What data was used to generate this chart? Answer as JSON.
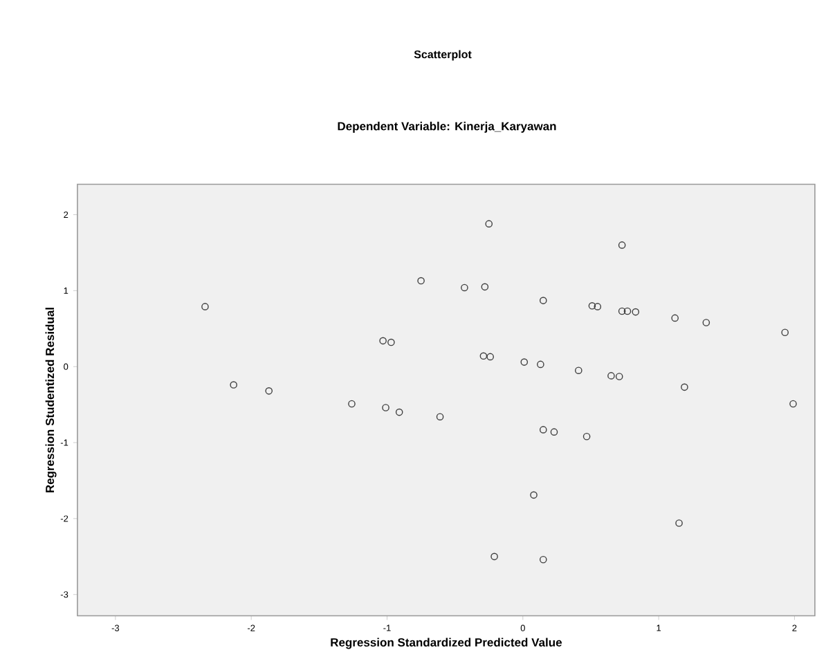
{
  "chart_data": {
    "type": "scatter",
    "title": "Scatterplot",
    "subtitle": "Dependent Variable: Kinerja_Karyawan",
    "xlabel": "Regression Standardized Predicted Value",
    "ylabel": "Regression Studentized Residual",
    "xlim": [
      -3.28,
      2.15
    ],
    "ylim": [
      -3.28,
      2.4
    ],
    "xticks": [
      -3,
      -2,
      -1,
      0,
      1,
      2
    ],
    "yticks": [
      -3,
      -2,
      -1,
      0,
      1,
      2
    ],
    "marker": "circle",
    "series": [
      {
        "color": "#404040",
        "x": [
          -2.34,
          -2.13,
          -1.87,
          -1.26,
          -1.03,
          -0.97,
          -1.01,
          -0.91,
          0.73,
          -0.75,
          -0.43,
          -0.28,
          0.15,
          0.51,
          0.55,
          0.73,
          0.77,
          0.83,
          1.12,
          1.35,
          1.93,
          -0.29,
          -0.24,
          0.01,
          0.13,
          0.41,
          0.65,
          0.71,
          1.19,
          1.99,
          -0.61,
          0.15,
          0.23,
          0.47,
          0.08,
          1.15,
          -0.21,
          0.15,
          -0.25
        ],
        "values": [
          0.79,
          -0.24,
          -0.32,
          -0.49,
          0.34,
          0.32,
          -0.54,
          -0.6,
          1.6,
          1.13,
          1.04,
          1.05,
          0.87,
          0.8,
          0.79,
          0.73,
          0.73,
          0.72,
          0.64,
          0.58,
          0.45,
          0.14,
          0.13,
          0.06,
          0.03,
          -0.05,
          -0.12,
          -0.13,
          -0.27,
          -0.49,
          -0.66,
          -0.83,
          -0.86,
          -0.92,
          -1.69,
          -2.06,
          -2.5,
          -2.54,
          1.88
        ]
      }
    ]
  }
}
